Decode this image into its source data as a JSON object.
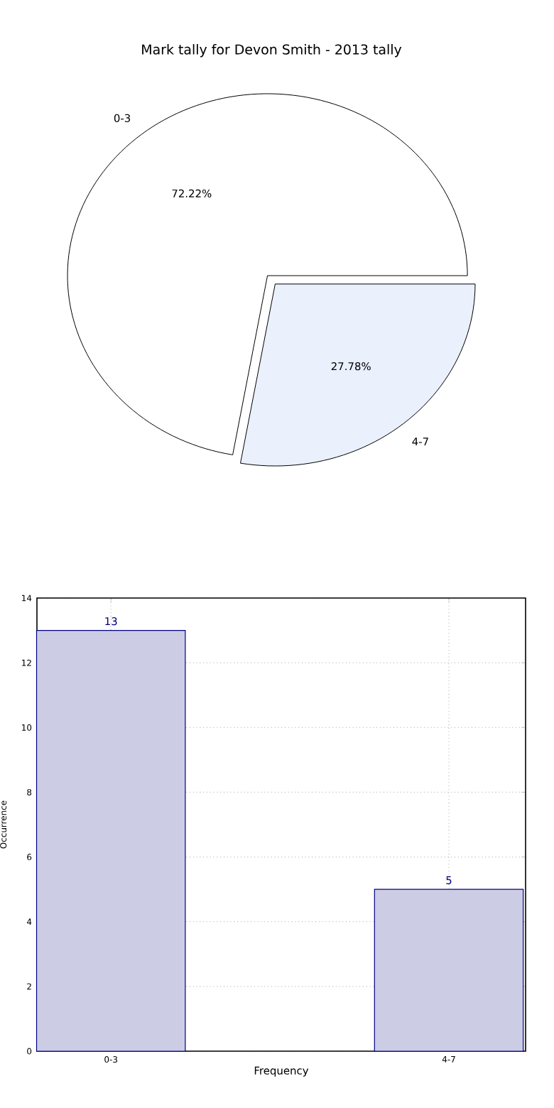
{
  "chart_data": [
    {
      "type": "pie",
      "title": "Mark tally for Devon Smith - 2013 tally",
      "categories": [
        "0-3",
        "4-7"
      ],
      "values": [
        72.22,
        27.78
      ],
      "colors": [
        "#ffffff",
        "#eaf0fc"
      ],
      "value_labels": [
        "72.22%",
        "27.78%"
      ]
    },
    {
      "type": "bar",
      "categories": [
        "0-3",
        "4-7"
      ],
      "values": [
        13,
        5
      ],
      "color": "#ccccE5",
      "xlabel": "Frequency",
      "ylabel": "Occurrence",
      "ylim": [
        0,
        14
      ],
      "yticks": [
        0,
        2,
        4,
        6,
        8,
        10,
        12,
        14
      ],
      "grid": true,
      "data_labels": true
    }
  ]
}
